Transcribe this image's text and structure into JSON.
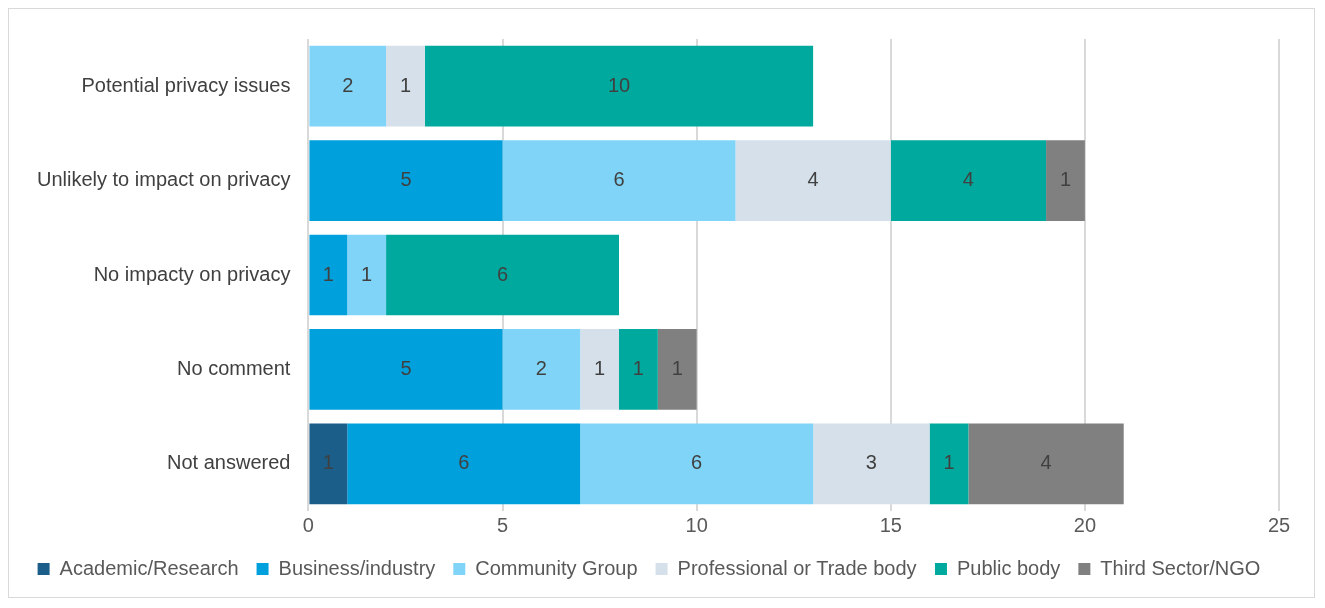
{
  "chart_data": {
    "type": "bar",
    "orientation": "horizontal",
    "stacked": true,
    "data_labels": true,
    "grid": "x",
    "legend": "bottom",
    "categories": [
      "Potential privacy issues",
      "Unlikely to impact on privacy",
      "No impacty on privacy",
      "No comment",
      "Not answered"
    ],
    "xlim": [
      0,
      25
    ],
    "xticks": [
      0,
      5,
      10,
      15,
      20,
      25
    ],
    "series": [
      {
        "name": "Academic/Research",
        "color": "#1b5e8a",
        "values": [
          null,
          null,
          null,
          null,
          1
        ]
      },
      {
        "name": "Business/industry",
        "color": "#00a0dc",
        "values": [
          null,
          5,
          1,
          5,
          6
        ]
      },
      {
        "name": "Community Group",
        "color": "#80d4f7",
        "values": [
          2,
          6,
          1,
          2,
          6
        ]
      },
      {
        "name": "Professional or Trade body",
        "color": "#d5e0eb",
        "values": [
          1,
          4,
          null,
          1,
          3
        ]
      },
      {
        "name": "Public body",
        "color": "#00a99d",
        "values": [
          10,
          4,
          6,
          1,
          1
        ]
      },
      {
        "name": "Third Sector/NGO",
        "color": "#808080",
        "values": [
          null,
          1,
          null,
          1,
          4
        ]
      }
    ]
  }
}
